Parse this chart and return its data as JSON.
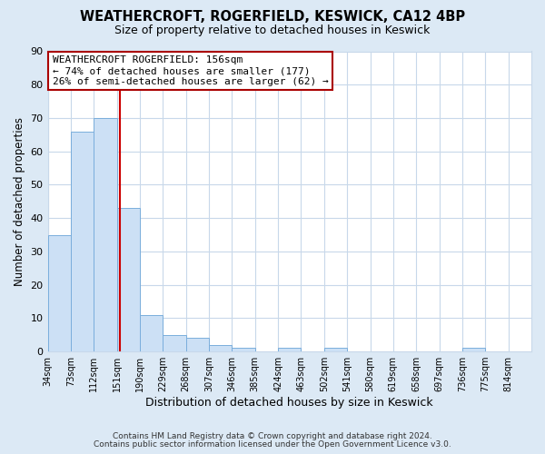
{
  "title": "WEATHERCROFT, ROGERFIELD, KESWICK, CA12 4BP",
  "subtitle": "Size of property relative to detached houses in Keswick",
  "xlabel": "Distribution of detached houses by size in Keswick",
  "ylabel": "Number of detached properties",
  "bar_color": "#cce0f5",
  "bar_edge_color": "#7aaedc",
  "background_color": "#dce9f5",
  "plot_bg_color": "#ffffff",
  "grid_color": "#c8d8ea",
  "annotation_box_color": "#ffffff",
  "annotation_border_color": "#aa0000",
  "vline_color": "#cc0000",
  "footer1": "Contains HM Land Registry data © Crown copyright and database right 2024.",
  "footer2": "Contains public sector information licensed under the Open Government Licence v3.0.",
  "annotation_line1": "WEATHERCROFT ROGERFIELD: 156sqm",
  "annotation_line2": "← 74% of detached houses are smaller (177)",
  "annotation_line3": "26% of semi-detached houses are larger (62) →",
  "bins": [
    34,
    73,
    112,
    151,
    190,
    229,
    268,
    307,
    346,
    385,
    424,
    463,
    502,
    541,
    580,
    619,
    658,
    697,
    736,
    775,
    814
  ],
  "counts": [
    35,
    66,
    70,
    43,
    11,
    5,
    4,
    2,
    1,
    0,
    1,
    0,
    1,
    0,
    0,
    0,
    0,
    0,
    1,
    0
  ],
  "vline_x": 156,
  "ylim": [
    0,
    90
  ],
  "yticks": [
    0,
    10,
    20,
    30,
    40,
    50,
    60,
    70,
    80,
    90
  ],
  "xtick_labels": [
    "34sqm",
    "73sqm",
    "112sqm",
    "151sqm",
    "190sqm",
    "229sqm",
    "268sqm",
    "307sqm",
    "346sqm",
    "385sqm",
    "424sqm",
    "463sqm",
    "502sqm",
    "541sqm",
    "580sqm",
    "619sqm",
    "658sqm",
    "697sqm",
    "736sqm",
    "775sqm",
    "814sqm"
  ]
}
